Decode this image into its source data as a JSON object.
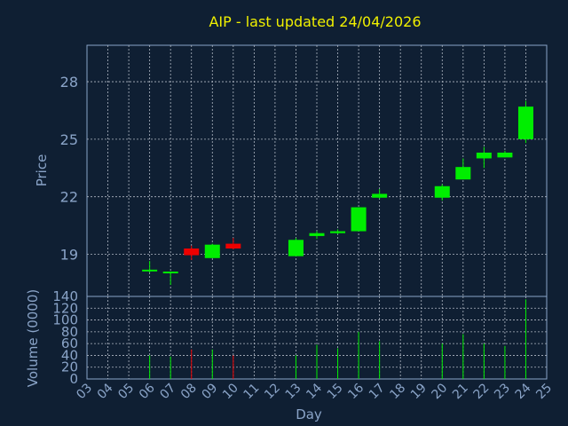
{
  "chart_data": {
    "type": "candlestick",
    "title": "AIP - last updated 24/04/2026",
    "xlabel": "Day",
    "price_ylabel": "Price",
    "volume_ylabel": "Volume (0000)",
    "x_ticks": [
      "03",
      "04",
      "05",
      "06",
      "07",
      "08",
      "09",
      "10",
      "11",
      "12",
      "13",
      "14",
      "15",
      "16",
      "17",
      "18",
      "19",
      "20",
      "21",
      "22",
      "23",
      "24",
      "25"
    ],
    "x_range": [
      3,
      25
    ],
    "price_range": [
      16.8,
      29.9
    ],
    "price_ticks": [
      19,
      22,
      25,
      28
    ],
    "volume_range": [
      0,
      140
    ],
    "volume_ticks": [
      0,
      20,
      40,
      60,
      80,
      100,
      120,
      140
    ],
    "grid": true,
    "colors": {
      "background": "#0f1f33",
      "axis": "#8aa4c8",
      "title": "#f0f000",
      "up": "#00ee00",
      "down": "#ee0000",
      "grid": "#b0b8c4"
    },
    "candles": [
      {
        "day": 6,
        "open": 18.15,
        "high": 18.65,
        "low": 18.05,
        "close": 18.15
      },
      {
        "day": 7,
        "open": 18.05,
        "high": 18.1,
        "low": 17.4,
        "close": 18.05
      },
      {
        "day": 8,
        "open": 19.3,
        "high": 19.45,
        "low": 18.7,
        "close": 18.95
      },
      {
        "day": 9,
        "open": 18.8,
        "high": 19.55,
        "low": 18.8,
        "close": 19.5
      },
      {
        "day": 10,
        "open": 19.55,
        "high": 19.85,
        "low": 19.25,
        "close": 19.3
      },
      {
        "day": 13,
        "open": 18.9,
        "high": 19.85,
        "low": 18.9,
        "close": 19.75
      },
      {
        "day": 14,
        "open": 19.95,
        "high": 20.2,
        "low": 19.8,
        "close": 20.1
      },
      {
        "day": 15,
        "open": 20.1,
        "high": 20.3,
        "low": 20.05,
        "close": 20.2
      },
      {
        "day": 16,
        "open": 20.2,
        "high": 21.45,
        "low": 20.2,
        "close": 21.45
      },
      {
        "day": 17,
        "open": 21.95,
        "high": 22.4,
        "low": 21.9,
        "close": 22.15
      },
      {
        "day": 20,
        "open": 21.95,
        "high": 22.65,
        "low": 21.8,
        "close": 22.55
      },
      {
        "day": 21,
        "open": 22.9,
        "high": 24.0,
        "low": 22.9,
        "close": 23.55
      },
      {
        "day": 22,
        "open": 24.0,
        "high": 24.6,
        "low": 23.5,
        "close": 24.3
      },
      {
        "day": 23,
        "open": 24.05,
        "high": 24.4,
        "low": 24.05,
        "close": 24.3
      },
      {
        "day": 24,
        "open": 25.0,
        "high": 27.0,
        "low": 24.8,
        "close": 26.7
      }
    ],
    "volume": [
      {
        "day": 6,
        "value": 40,
        "direction": "up"
      },
      {
        "day": 7,
        "value": 38,
        "direction": "up"
      },
      {
        "day": 8,
        "value": 50,
        "direction": "down"
      },
      {
        "day": 9,
        "value": 50,
        "direction": "up"
      },
      {
        "day": 10,
        "value": 40,
        "direction": "down"
      },
      {
        "day": 13,
        "value": 40,
        "direction": "up"
      },
      {
        "day": 14,
        "value": 58,
        "direction": "up"
      },
      {
        "day": 15,
        "value": 52,
        "direction": "up"
      },
      {
        "day": 16,
        "value": 80,
        "direction": "up"
      },
      {
        "day": 17,
        "value": 64,
        "direction": "up"
      },
      {
        "day": 20,
        "value": 60,
        "direction": "up"
      },
      {
        "day": 21,
        "value": 76,
        "direction": "up"
      },
      {
        "day": 22,
        "value": 60,
        "direction": "up"
      },
      {
        "day": 23,
        "value": 56,
        "direction": "up"
      },
      {
        "day": 24,
        "value": 135,
        "direction": "up"
      }
    ]
  }
}
